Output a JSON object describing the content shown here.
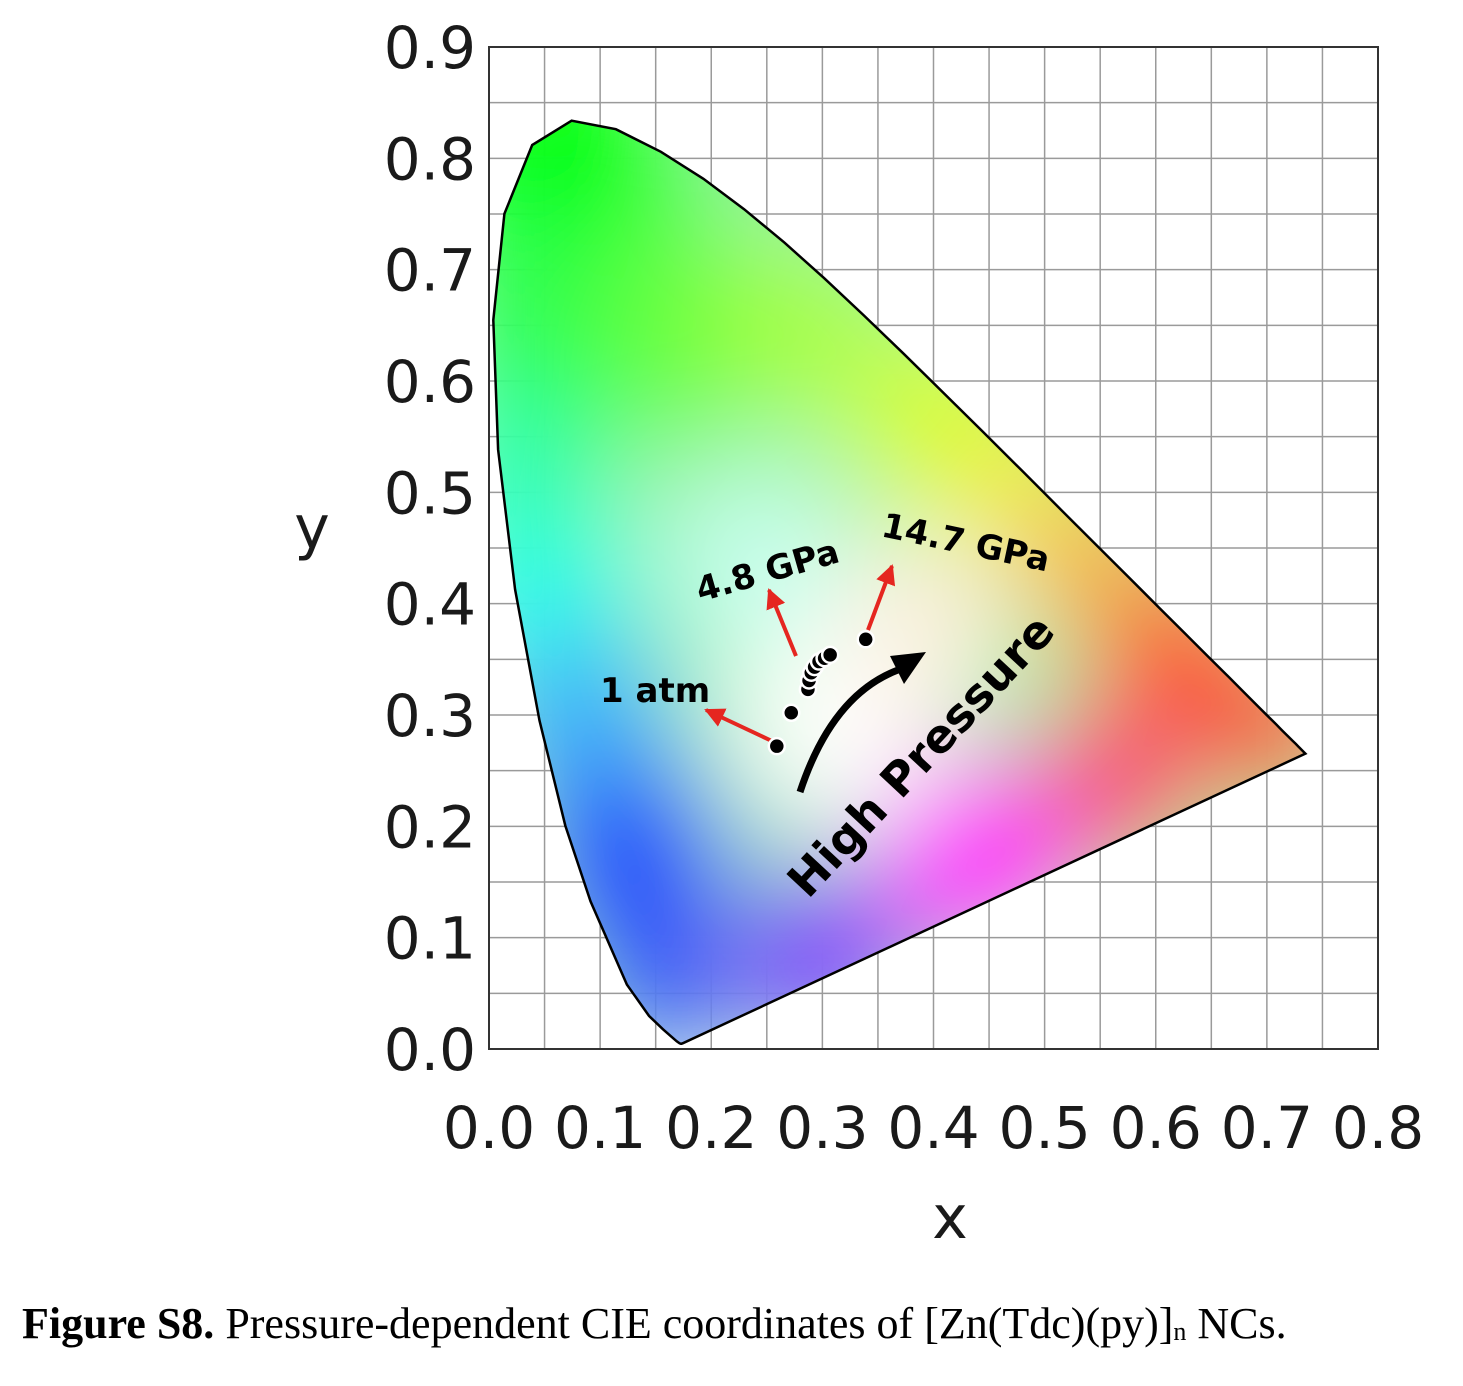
{
  "chart_data": {
    "type": "scatter",
    "title": "",
    "xlabel": "x",
    "ylabel": "y",
    "xlim": [
      0.0,
      0.8
    ],
    "ylim": [
      0.0,
      0.9
    ],
    "x_ticks": [
      "0.0",
      "0.1",
      "0.2",
      "0.3",
      "0.4",
      "0.5",
      "0.6",
      "0.7",
      "0.8"
    ],
    "y_ticks": [
      "0.0",
      "0.1",
      "0.2",
      "0.3",
      "0.4",
      "0.5",
      "0.6",
      "0.7",
      "0.8",
      "0.9"
    ],
    "grid": true,
    "background": "CIE 1931 chromaticity diagram",
    "points": [
      {
        "x": 0.259,
        "y": 0.272
      },
      {
        "x": 0.272,
        "y": 0.302
      },
      {
        "x": 0.287,
        "y": 0.323
      },
      {
        "x": 0.288,
        "y": 0.331
      },
      {
        "x": 0.29,
        "y": 0.338
      },
      {
        "x": 0.293,
        "y": 0.343
      },
      {
        "x": 0.297,
        "y": 0.348
      },
      {
        "x": 0.302,
        "y": 0.351
      },
      {
        "x": 0.307,
        "y": 0.354
      },
      {
        "x": 0.339,
        "y": 0.368
      }
    ],
    "annotations": [
      {
        "text": "1 atm",
        "point_x": 0.259,
        "point_y": 0.272
      },
      {
        "text": "4.8 GPa",
        "point_x": 0.276,
        "point_y": 0.34
      },
      {
        "text": "14.7 GPa",
        "point_x": 0.339,
        "point_y": 0.368
      },
      {
        "text": "High Pressure"
      }
    ],
    "colors": {
      "points": "#000000",
      "arrows": "#e52620",
      "grid": "#9a9a9a"
    }
  },
  "caption": {
    "label": "Figure S8.",
    "text_before": " Pressure-dependent CIE coordinates of [Zn(Tdc)(py)]",
    "subscript": "n",
    "text_after": " NCs."
  }
}
